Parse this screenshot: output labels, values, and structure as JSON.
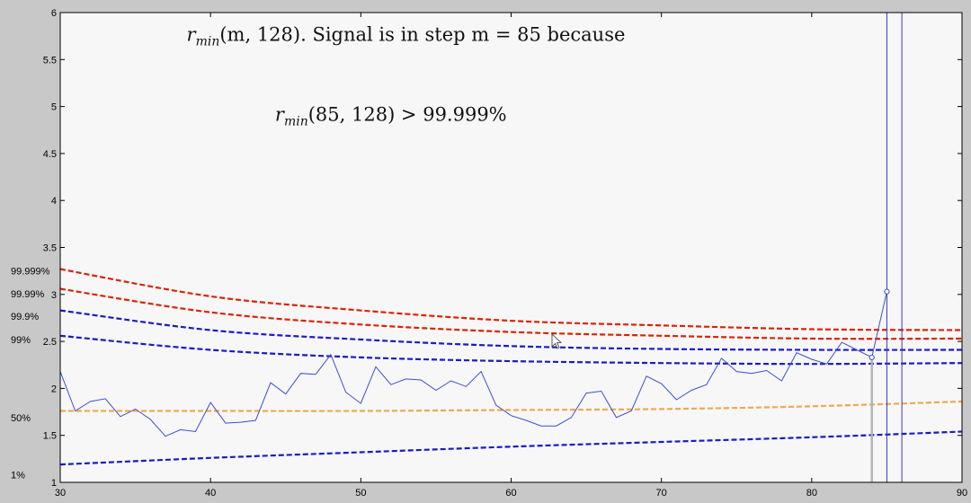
{
  "chart_data": {
    "type": "line",
    "title": "",
    "xlabel": "",
    "ylabel": "",
    "xlim": [
      30,
      90
    ],
    "ylim": [
      1,
      6
    ],
    "x_ticks": [
      30,
      40,
      50,
      60,
      70,
      80,
      90
    ],
    "y_ticks": [
      1,
      1.5,
      2,
      2.5,
      3,
      3.5,
      4,
      4.5,
      5,
      5.5,
      6
    ],
    "grid": false,
    "annotations": [
      {
        "id": "line1",
        "text": "r_min(m, 128). Signal is in step m = 85 because",
        "x": 53,
        "y": 5.7
      },
      {
        "id": "line2",
        "text": "r_min(85, 128) > 99.999%",
        "x": 52,
        "y": 4.85
      }
    ],
    "percentile_labels": [
      {
        "text": "99.999%",
        "y": 3.25
      },
      {
        "text": "99.99%",
        "y": 3.01
      },
      {
        "text": "99.9%",
        "y": 2.77
      },
      {
        "text": "99%",
        "y": 2.52
      },
      {
        "text": "50%",
        "y": 1.69
      },
      {
        "text": "1%",
        "y": 1.08
      }
    ],
    "threshold_curves": [
      {
        "label": "99.999%",
        "color": "#dd2200",
        "points": [
          [
            30,
            3.27
          ],
          [
            40,
            2.98
          ],
          [
            50,
            2.83
          ],
          [
            60,
            2.72
          ],
          [
            70,
            2.67
          ],
          [
            80,
            2.63
          ],
          [
            90,
            2.62
          ]
        ]
      },
      {
        "label": "99.99%",
        "color": "#dd2200",
        "points": [
          [
            30,
            3.06
          ],
          [
            40,
            2.81
          ],
          [
            50,
            2.68
          ],
          [
            60,
            2.6
          ],
          [
            70,
            2.56
          ],
          [
            80,
            2.53
          ],
          [
            90,
            2.53
          ]
        ]
      },
      {
        "label": "99.9%",
        "color": "#1a1acc",
        "points": [
          [
            30,
            2.83
          ],
          [
            40,
            2.62
          ],
          [
            50,
            2.52
          ],
          [
            60,
            2.45
          ],
          [
            70,
            2.42
          ],
          [
            80,
            2.41
          ],
          [
            90,
            2.41
          ]
        ]
      },
      {
        "label": "99%",
        "color": "#1a1acc",
        "points": [
          [
            30,
            2.56
          ],
          [
            40,
            2.41
          ],
          [
            50,
            2.33
          ],
          [
            60,
            2.29
          ],
          [
            70,
            2.27
          ],
          [
            80,
            2.26
          ],
          [
            90,
            2.27
          ]
        ]
      },
      {
        "label": "50%",
        "color": "#f0a850",
        "points": [
          [
            30,
            1.76
          ],
          [
            40,
            1.76
          ],
          [
            50,
            1.76
          ],
          [
            60,
            1.77
          ],
          [
            70,
            1.78
          ],
          [
            80,
            1.81
          ],
          [
            90,
            1.86
          ]
        ]
      },
      {
        "label": "1%",
        "color": "#1a1acc",
        "points": [
          [
            30,
            1.19
          ],
          [
            40,
            1.26
          ],
          [
            50,
            1.32
          ],
          [
            60,
            1.38
          ],
          [
            70,
            1.43
          ],
          [
            80,
            1.48
          ],
          [
            90,
            1.54
          ]
        ]
      }
    ],
    "series": [
      {
        "color": "#3a4fd0",
        "x": [
          30,
          31,
          32,
          33,
          34,
          35,
          36,
          37,
          38,
          39,
          40,
          41,
          42,
          43,
          44,
          45,
          46,
          47,
          48,
          49,
          50,
          51,
          52,
          53,
          54,
          55,
          56,
          57,
          58,
          59,
          60,
          61,
          62,
          63,
          64,
          65,
          66,
          67,
          68,
          69,
          70,
          71,
          72,
          73,
          74,
          75,
          76,
          77,
          78,
          79,
          80,
          81,
          82,
          83,
          84,
          85
        ],
        "y": [
          2.18,
          1.76,
          1.86,
          1.89,
          1.7,
          1.78,
          1.67,
          1.49,
          1.56,
          1.54,
          1.85,
          1.63,
          1.64,
          1.66,
          2.06,
          1.94,
          2.16,
          2.15,
          2.36,
          1.96,
          1.84,
          2.23,
          2.04,
          2.1,
          2.09,
          1.98,
          2.08,
          2.02,
          2.18,
          1.82,
          1.71,
          1.66,
          1.6,
          1.6,
          1.69,
          1.95,
          1.97,
          1.69,
          1.76,
          2.13,
          2.05,
          1.88,
          1.98,
          2.04,
          2.32,
          2.18,
          2.16,
          2.19,
          2.08,
          2.38,
          2.31,
          2.26,
          2.49,
          2.41,
          2.33,
          3.03
        ]
      }
    ],
    "markers": [
      {
        "x": 84,
        "y": 2.33
      },
      {
        "x": 85,
        "y": 3.03
      }
    ],
    "vertical_lines": [
      {
        "x": 84,
        "color": "#b4b4b4",
        "y_to": 2.33
      },
      {
        "x": 85,
        "color": "#3333cc",
        "y_to": 6
      },
      {
        "x": 86,
        "color": "#4433bb",
        "y_to": 6
      }
    ]
  }
}
